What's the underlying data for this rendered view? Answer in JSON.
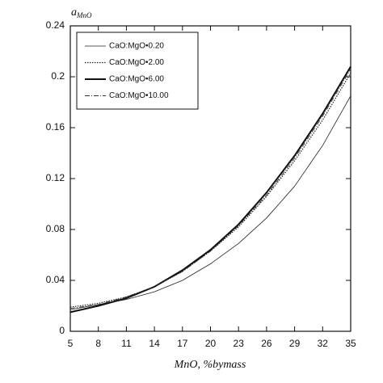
{
  "chart_data": {
    "type": "line",
    "ylabel": "a",
    "ylabel_sub": "MnO",
    "xlabel": "MnO, %bymass",
    "x": [
      5,
      8,
      11,
      14,
      17,
      20,
      23,
      26,
      29,
      32,
      35
    ],
    "xlim": [
      5,
      35
    ],
    "xticks": [
      5,
      8,
      11,
      14,
      17,
      20,
      23,
      26,
      29,
      32,
      35
    ],
    "ylim": [
      0,
      0.24
    ],
    "yticks": [
      0,
      0.04,
      0.08,
      0.12,
      0.16,
      0.2,
      0.24
    ],
    "grid": false,
    "legend": "upper left",
    "series": [
      {
        "name": "CaO:MgO•0.20",
        "color": "#222",
        "dash": "none",
        "width": 0.8,
        "values": [
          0.017,
          0.021,
          0.025,
          0.031,
          0.04,
          0.053,
          0.069,
          0.089,
          0.114,
          0.146,
          0.185
        ]
      },
      {
        "name": "CaO:MgO•2.00",
        "color": "#222",
        "dash": "1.5 1.5",
        "width": 1.2,
        "values": [
          0.019,
          0.022,
          0.027,
          0.035,
          0.047,
          0.063,
          0.082,
          0.106,
          0.134,
          0.166,
          0.203
        ]
      },
      {
        "name": "CaO:MgO•6.00",
        "color": "#111",
        "dash": "none",
        "width": 2,
        "values": [
          0.015,
          0.02,
          0.026,
          0.035,
          0.048,
          0.064,
          0.084,
          0.109,
          0.138,
          0.171,
          0.208
        ]
      },
      {
        "name": "CaO:MgO•10.00",
        "color": "#333",
        "dash": "6 2 1 2",
        "width": 0.9,
        "values": [
          0.018,
          0.021,
          0.027,
          0.035,
          0.047,
          0.063,
          0.083,
          0.107,
          0.136,
          0.169,
          0.206
        ]
      }
    ]
  }
}
